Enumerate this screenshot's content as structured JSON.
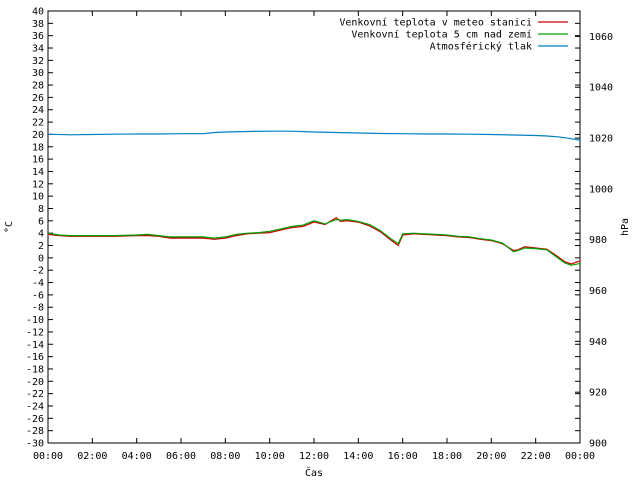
{
  "chart_data": {
    "type": "line",
    "title": "",
    "xlabel": "Čas",
    "ylabel": "°C",
    "y2label": "hPa",
    "xlim": [
      0,
      24
    ],
    "ylim": [
      -30,
      40
    ],
    "y2lim": [
      900,
      1070
    ],
    "x_ticks": [
      "00:00",
      "02:00",
      "04:00",
      "06:00",
      "08:00",
      "10:00",
      "12:00",
      "14:00",
      "16:00",
      "18:00",
      "20:00",
      "22:00",
      "00:00"
    ],
    "y_ticks": [
      40,
      38,
      36,
      34,
      32,
      30,
      28,
      26,
      24,
      22,
      20,
      18,
      16,
      14,
      12,
      10,
      8,
      6,
      4,
      2,
      0,
      -2,
      -4,
      -6,
      -8,
      -10,
      -12,
      -14,
      -16,
      -18,
      -20,
      -22,
      -24,
      -26,
      -28,
      -30
    ],
    "y2_ticks": [
      1060,
      1040,
      1020,
      1000,
      980,
      960,
      940,
      920,
      900
    ],
    "grid": false,
    "legend_position": "top-right",
    "series": [
      {
        "name": "Venkovní teplota v meteo stanici",
        "axis": "y",
        "color": "#cc0000",
        "x": [
          0,
          0.5,
          1,
          2,
          3,
          4,
          4.5,
          5,
          5.5,
          6,
          7,
          7.5,
          8,
          8.5,
          9,
          9.5,
          10,
          10.5,
          11,
          11.5,
          12,
          12.5,
          13,
          13.2,
          13.5,
          14,
          14.5,
          15,
          15.5,
          15.8,
          16,
          16.5,
          17,
          17.5,
          18,
          18.5,
          19,
          19.5,
          20,
          20.5,
          21,
          21.2,
          21.5,
          22,
          22.5,
          23,
          23.3,
          23.6,
          24
        ],
        "y": [
          3.8,
          3.6,
          3.5,
          3.5,
          3.5,
          3.6,
          3.6,
          3.5,
          3.2,
          3.2,
          3.2,
          3.0,
          3.2,
          3.6,
          3.9,
          4.0,
          4.1,
          4.5,
          4.9,
          5.1,
          5.8,
          5.4,
          6.5,
          5.9,
          6.0,
          5.8,
          5.2,
          4.2,
          2.8,
          2.0,
          3.7,
          3.9,
          3.8,
          3.7,
          3.6,
          3.4,
          3.3,
          3.0,
          2.8,
          2.3,
          1.2,
          1.3,
          1.8,
          1.6,
          1.4,
          0.2,
          -0.6,
          -1.0,
          -0.5
        ]
      },
      {
        "name": "Venkovní teplota 5 cm nad zemí",
        "axis": "y",
        "color": "#00a000",
        "x": [
          0,
          0.5,
          1,
          2,
          3,
          4,
          4.5,
          5,
          5.5,
          6,
          7,
          7.5,
          8,
          8.5,
          9,
          9.5,
          10,
          10.5,
          11,
          11.5,
          12,
          12.5,
          13,
          13.2,
          13.5,
          14,
          14.5,
          15,
          15.5,
          15.8,
          16,
          16.5,
          17,
          17.5,
          18,
          18.5,
          19,
          19.5,
          20,
          20.5,
          21,
          21.2,
          21.5,
          22,
          22.5,
          23,
          23.3,
          23.6,
          24
        ],
        "y": [
          4.0,
          3.7,
          3.6,
          3.6,
          3.6,
          3.7,
          3.8,
          3.6,
          3.4,
          3.4,
          3.4,
          3.2,
          3.4,
          3.8,
          4.0,
          4.1,
          4.3,
          4.7,
          5.1,
          5.3,
          6.0,
          5.5,
          6.2,
          6.1,
          6.2,
          5.9,
          5.4,
          4.4,
          3.0,
          2.3,
          3.9,
          4.0,
          3.9,
          3.8,
          3.7,
          3.5,
          3.4,
          3.1,
          2.9,
          2.4,
          1.0,
          1.2,
          1.6,
          1.5,
          1.3,
          0.0,
          -0.8,
          -1.2,
          -0.9
        ]
      },
      {
        "name": "Atmosférický tlak",
        "axis": "y2",
        "color": "#0080c0",
        "x": [
          0,
          1,
          2,
          3,
          4,
          5,
          6,
          7,
          7.5,
          8,
          9,
          10,
          11,
          12,
          13,
          14,
          15,
          16,
          17,
          18,
          19,
          20,
          21,
          22,
          22.5,
          23,
          23.5,
          24
        ],
        "y": [
          1021.5,
          1021.3,
          1021.4,
          1021.5,
          1021.6,
          1021.6,
          1021.7,
          1021.7,
          1022.2,
          1022.4,
          1022.6,
          1022.7,
          1022.7,
          1022.4,
          1022.2,
          1022.0,
          1021.8,
          1021.7,
          1021.6,
          1021.6,
          1021.5,
          1021.4,
          1021.2,
          1021.0,
          1020.8,
          1020.5,
          1019.9,
          1019.2
        ]
      }
    ]
  }
}
